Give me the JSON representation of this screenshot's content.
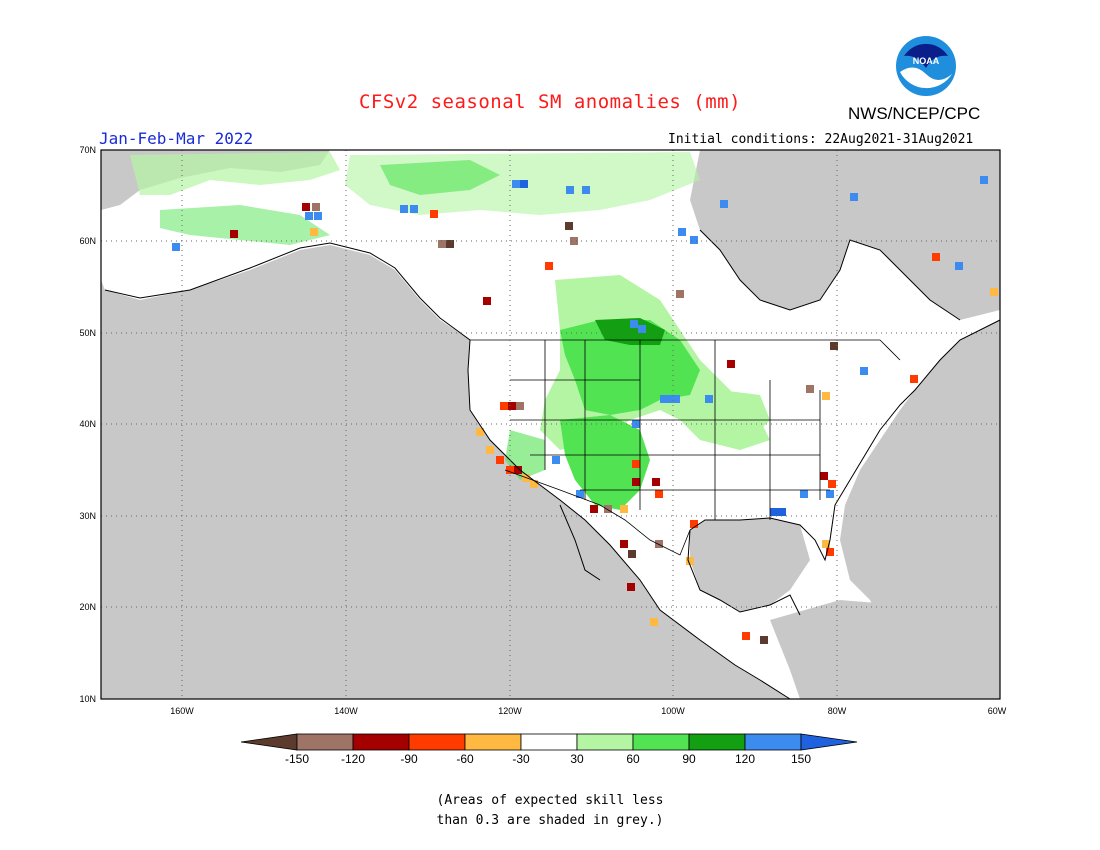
{
  "title": "CFSv2 seasonal SM anomalies (mm)",
  "organization": "NWS/NCEP/CPC",
  "logo_text": "NOAA",
  "season": "Jan-Feb-Mar 2022",
  "initial_conditions": "Initial conditions: 22Aug2021-31Aug2021",
  "lat_labels": [
    "70N",
    "60N",
    "50N",
    "40N",
    "30N",
    "20N",
    "10N"
  ],
  "lon_labels": [
    "160W",
    "140W",
    "120W",
    "100W",
    "80W",
    "60W"
  ],
  "colorbar": {
    "labels": [
      "-150",
      "-120",
      "-90",
      "-60",
      "-30",
      "30",
      "60",
      "90",
      "120",
      "150"
    ],
    "colors": [
      "#5c3a2e",
      "#9e7467",
      "#a50000",
      "#ff3b00",
      "#ffb841",
      "#ffffff",
      "#b3f5a3",
      "#52e352",
      "#12a012",
      "#3b8cee",
      "#1f62e0"
    ]
  },
  "skill_note": [
    "(Areas of expected skill less",
    "than 0.3 are shaded in grey.)"
  ],
  "colors": {
    "title": "#ff1a1a",
    "season": "#1a2bd6",
    "skill_grey": "#c8c8c8",
    "map_bg": "#ffffff"
  }
}
